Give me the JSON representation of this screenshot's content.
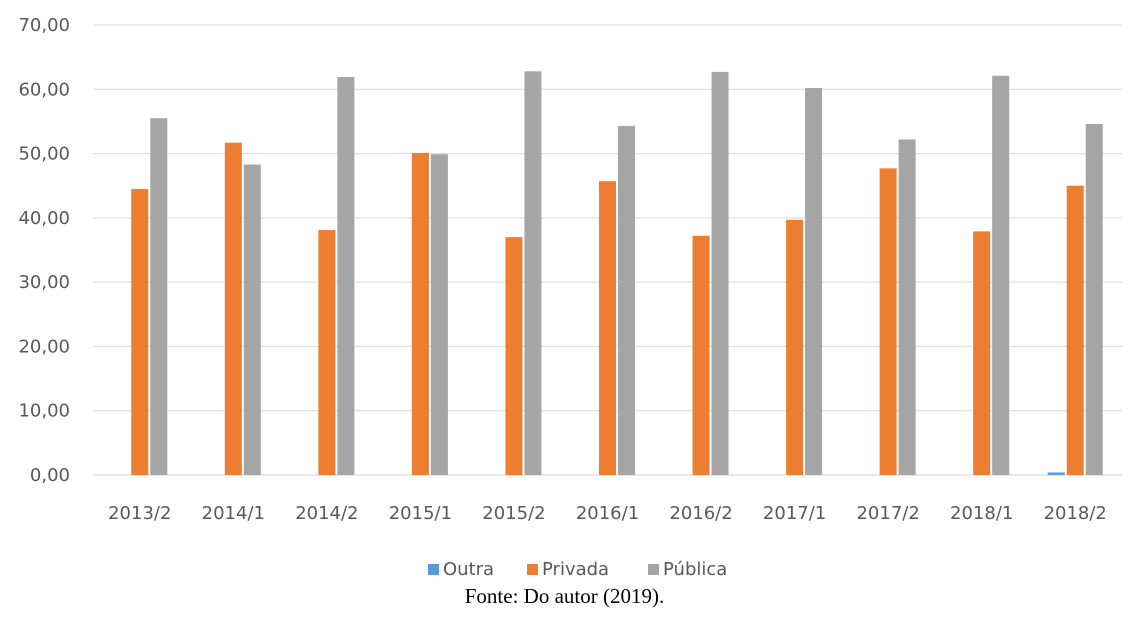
{
  "chart_data": {
    "type": "bar",
    "categories": [
      "2013/2",
      "2014/1",
      "2014/2",
      "2015/1",
      "2015/2",
      "2016/1",
      "2016/2",
      "2017/1",
      "2017/2",
      "2018/1",
      "2018/2"
    ],
    "series": [
      {
        "name": "Outra",
        "color": "#5b9bd5",
        "values": [
          0,
          0,
          0,
          0,
          0,
          0,
          0,
          0,
          0,
          0,
          0.4
        ]
      },
      {
        "name": "Privada",
        "color": "#ed7d31",
        "values": [
          44.5,
          51.7,
          38.1,
          50.1,
          37.0,
          45.7,
          37.2,
          39.7,
          47.7,
          37.9,
          45.0
        ]
      },
      {
        "name": "Pública",
        "color": "#a5a5a5",
        "values": [
          55.5,
          48.3,
          61.9,
          49.9,
          62.8,
          54.3,
          62.7,
          60.2,
          52.2,
          62.1,
          54.6
        ]
      }
    ],
    "yticks": [
      "0,00",
      "10,00",
      "20,00",
      "30,00",
      "40,00",
      "50,00",
      "60,00",
      "70,00"
    ],
    "ylim": [
      0,
      70
    ],
    "grid": true,
    "legend_position": "bottom",
    "title": "",
    "xlabel": "",
    "ylabel": ""
  },
  "caption": "Fonte: Do autor (2019)."
}
